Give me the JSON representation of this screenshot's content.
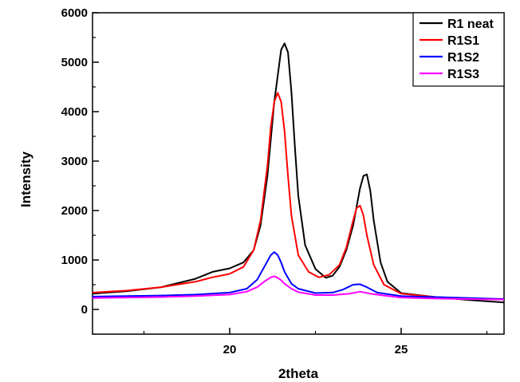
{
  "chart_data": {
    "type": "line",
    "title": "",
    "xlabel": "2theta",
    "ylabel": "Intensity",
    "xlim": [
      16,
      28
    ],
    "ylim": [
      -500,
      6000
    ],
    "x_ticks": [
      20,
      25
    ],
    "y_ticks": [
      0,
      1000,
      2000,
      3000,
      4000,
      5000,
      6000
    ],
    "grid": false,
    "legend_position": "top-right",
    "series": [
      {
        "name": "R1 neat",
        "color": "#000000",
        "x": [
          16,
          17,
          18,
          19,
          19.5,
          20,
          20.4,
          20.7,
          20.9,
          21.1,
          21.3,
          21.5,
          21.6,
          21.7,
          21.8,
          21.9,
          22.0,
          22.2,
          22.5,
          22.8,
          23.0,
          23.2,
          23.4,
          23.6,
          23.8,
          23.9,
          24.0,
          24.1,
          24.2,
          24.4,
          24.6,
          25,
          26,
          27,
          28
        ],
        "y": [
          320,
          370,
          450,
          620,
          760,
          830,
          950,
          1200,
          1700,
          2700,
          4200,
          5250,
          5380,
          5200,
          4400,
          3300,
          2300,
          1300,
          820,
          640,
          680,
          860,
          1200,
          1700,
          2450,
          2700,
          2730,
          2400,
          1800,
          950,
          560,
          330,
          250,
          190,
          140
        ]
      },
      {
        "name": "R1S1",
        "color": "#ff0000",
        "x": [
          16,
          17,
          18,
          19,
          19.5,
          20,
          20.4,
          20.7,
          20.9,
          21.1,
          21.2,
          21.3,
          21.4,
          21.5,
          21.6,
          21.7,
          21.8,
          22.0,
          22.3,
          22.6,
          22.9,
          23.2,
          23.4,
          23.6,
          23.7,
          23.8,
          23.9,
          24.0,
          24.2,
          24.5,
          25,
          26,
          27,
          28
        ],
        "y": [
          340,
          380,
          450,
          560,
          650,
          720,
          860,
          1200,
          1800,
          2900,
          3700,
          4200,
          4380,
          4200,
          3600,
          2700,
          1900,
          1100,
          760,
          650,
          700,
          900,
          1250,
          1800,
          2050,
          2100,
          1900,
          1500,
          900,
          500,
          320,
          250,
          220,
          200
        ]
      },
      {
        "name": "R1S2",
        "color": "#0000ff",
        "x": [
          16,
          17,
          18,
          19,
          20,
          20.5,
          20.8,
          21.0,
          21.2,
          21.3,
          21.4,
          21.5,
          21.6,
          21.8,
          22.0,
          22.5,
          23.0,
          23.3,
          23.6,
          23.8,
          24.0,
          24.3,
          25,
          26,
          27,
          28
        ],
        "y": [
          260,
          270,
          280,
          300,
          340,
          420,
          600,
          850,
          1100,
          1160,
          1100,
          950,
          760,
          520,
          420,
          330,
          340,
          400,
          500,
          510,
          450,
          340,
          270,
          250,
          230,
          210
        ]
      },
      {
        "name": "R1S3",
        "color": "#ff00ff",
        "x": [
          16,
          17,
          18,
          19,
          20,
          20.5,
          20.8,
          21.0,
          21.2,
          21.3,
          21.4,
          21.5,
          21.6,
          21.8,
          22.0,
          22.5,
          23.0,
          23.5,
          23.8,
          24.1,
          24.5,
          25,
          26,
          27,
          28
        ],
        "y": [
          230,
          240,
          250,
          270,
          300,
          360,
          450,
          560,
          650,
          670,
          640,
          590,
          520,
          420,
          350,
          290,
          290,
          320,
          360,
          320,
          280,
          240,
          220,
          210,
          200
        ]
      }
    ]
  }
}
